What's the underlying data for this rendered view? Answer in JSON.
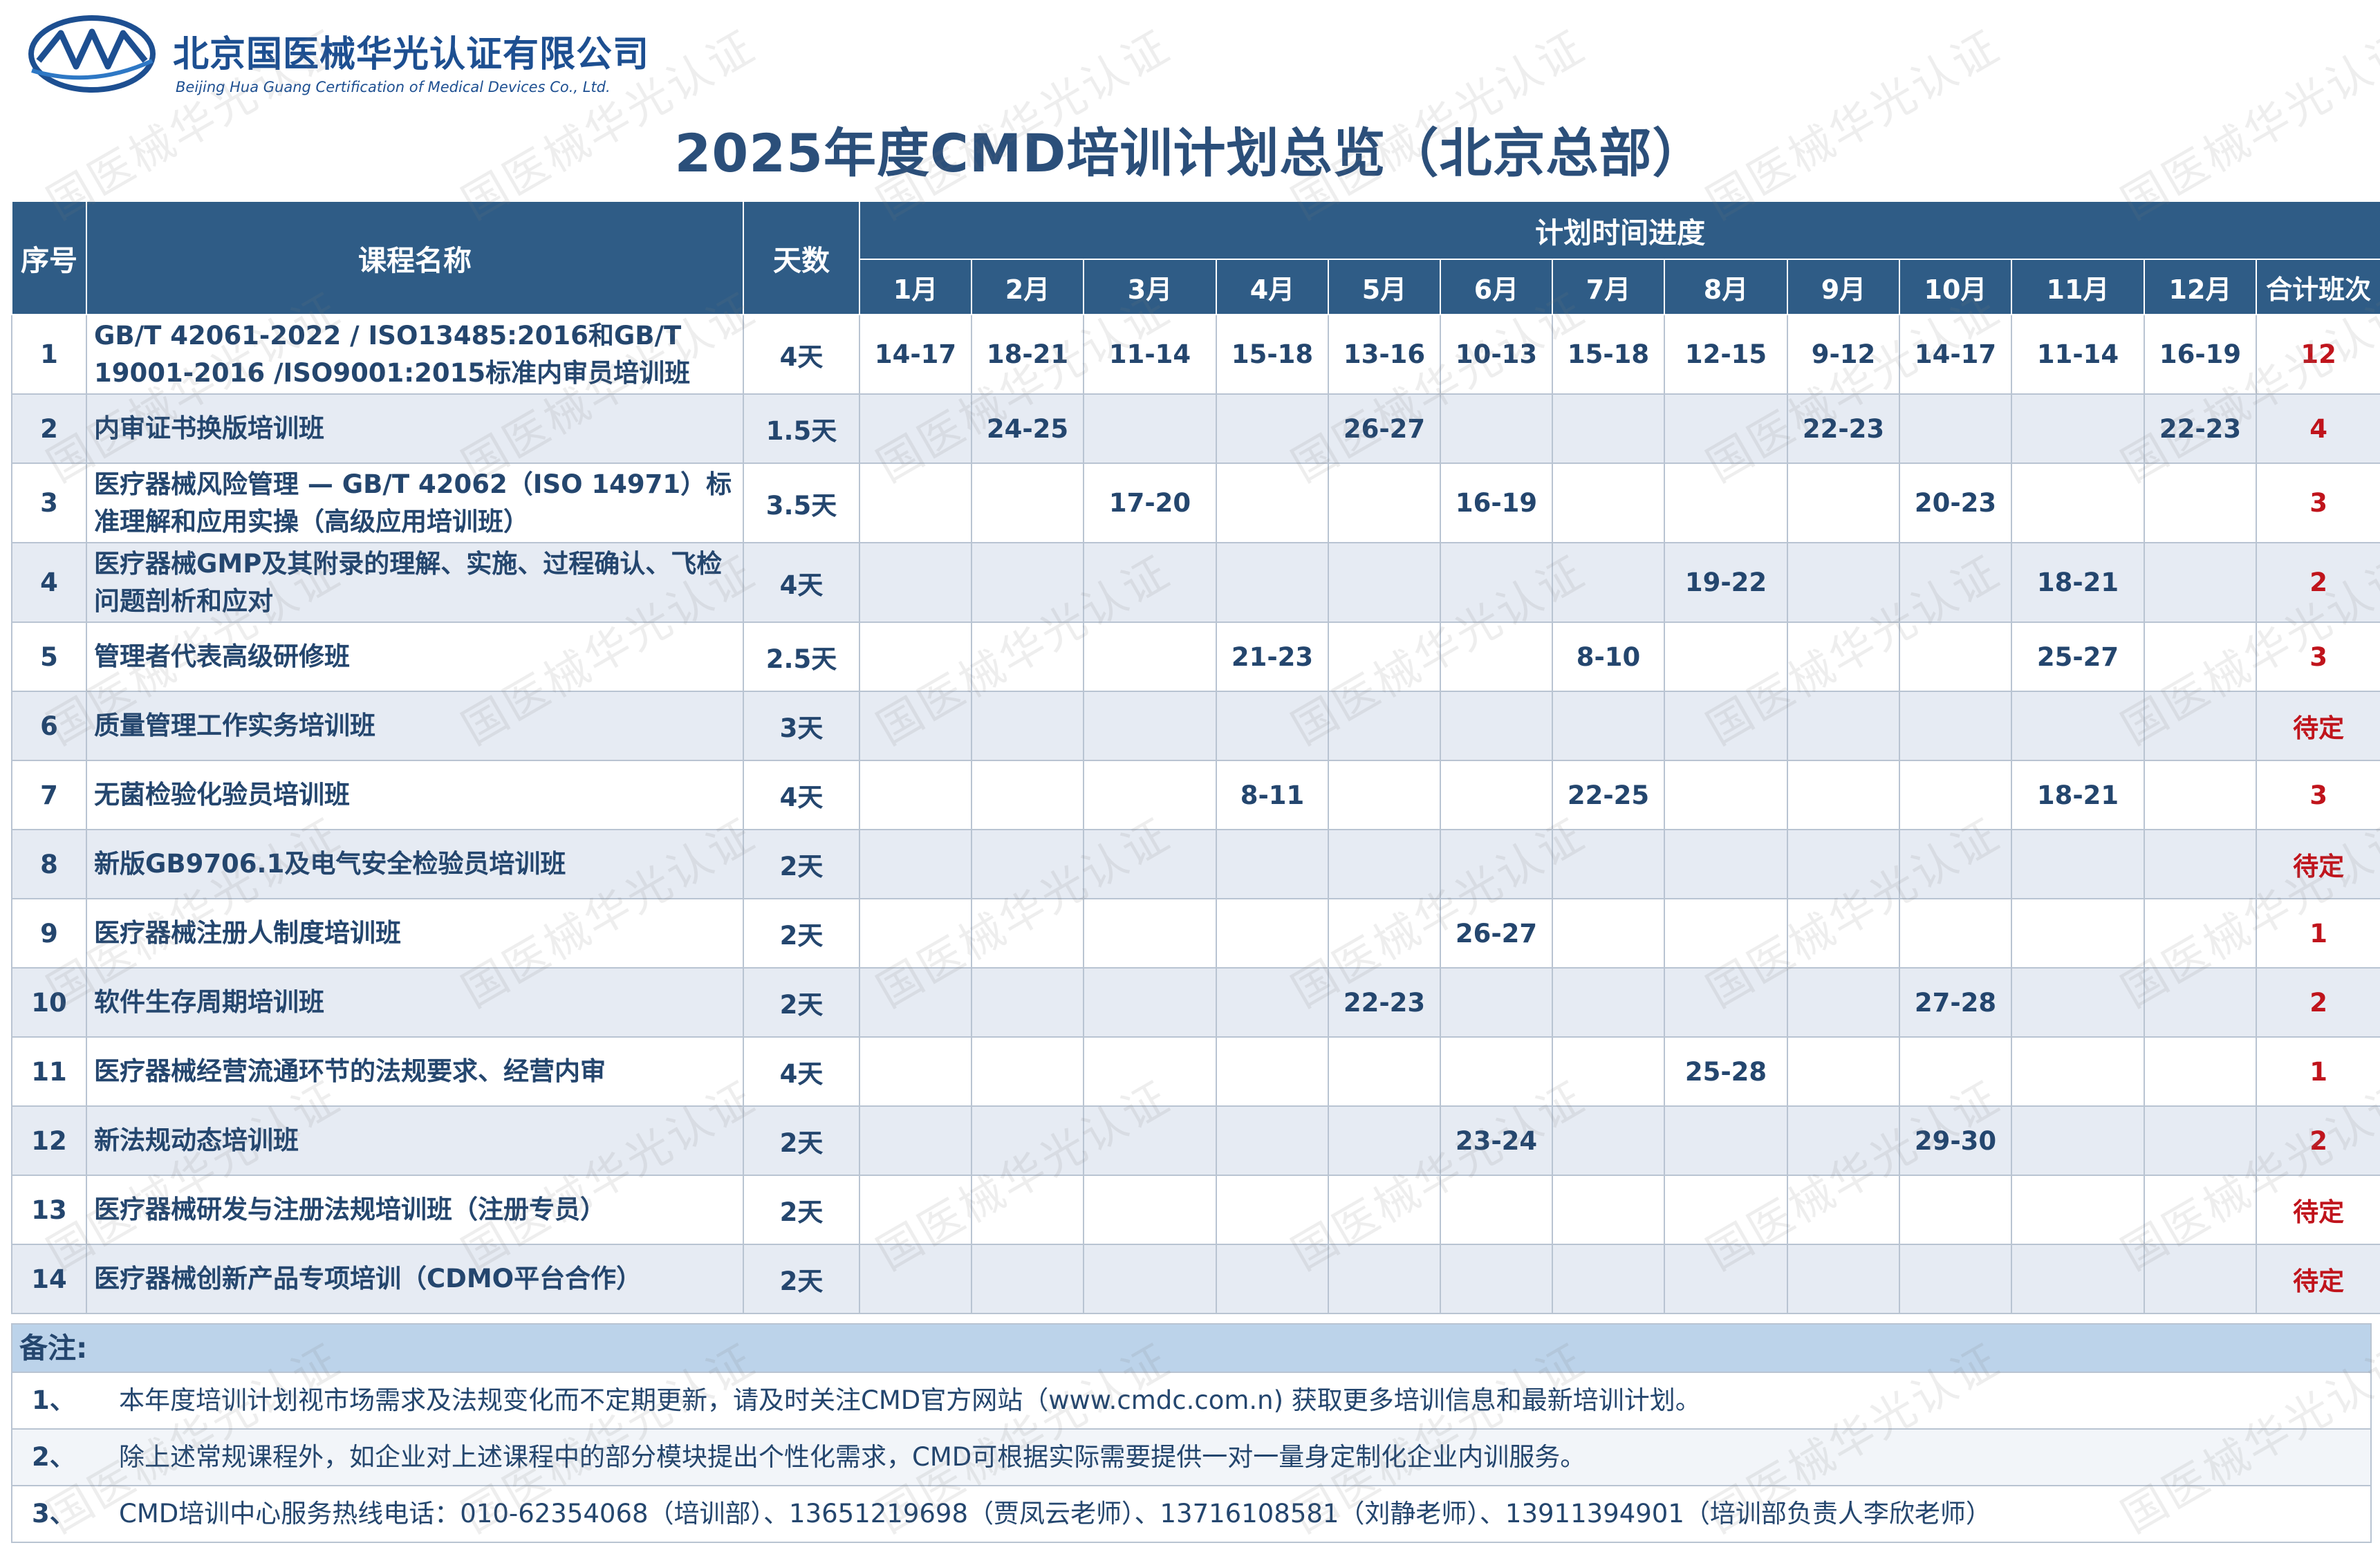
{
  "company": {
    "name_cn": "北京国医械华光认证有限公司",
    "name_en": "Beijing Hua Guang Certification of Medical Devices Co., Ltd."
  },
  "title": "2025年度CMD培训计划总览（北京总部）",
  "table": {
    "header_seq": "序号",
    "header_course": "课程名称",
    "header_days": "天数",
    "header_progress": "计划时间进度",
    "months": [
      "1月",
      "2月",
      "3月",
      "4月",
      "5月",
      "6月",
      "7月",
      "8月",
      "9月",
      "10月",
      "11月",
      "12月"
    ],
    "header_total": "合计班次",
    "rows": [
      {
        "seq": "1",
        "course": "GB/T 42061-2022 / ISO13485:2016和GB/T 19001-2016 /ISO9001:2015标准内审员培训班",
        "days": "4天",
        "months": [
          "14-17",
          "18-21",
          "11-14",
          "15-18",
          "13-16",
          "10-13",
          "15-18",
          "12-15",
          "9-12",
          "14-17",
          "11-14",
          "16-19"
        ],
        "total": "12"
      },
      {
        "seq": "2",
        "course": "内审证书换版培训班",
        "days": "1.5天",
        "months": [
          "",
          "24-25",
          "",
          "",
          "26-27",
          "",
          "",
          "",
          "22-23",
          "",
          "",
          "22-23"
        ],
        "total": "4"
      },
      {
        "seq": "3",
        "course": "医疗器械风险管理 — GB/T 42062（ISO 14971）标准理解和应用实操（高级应用培训班）",
        "days": "3.5天",
        "months": [
          "",
          "",
          "17-20",
          "",
          "",
          "16-19",
          "",
          "",
          "",
          "20-23",
          "",
          ""
        ],
        "total": "3"
      },
      {
        "seq": "4",
        "course": "医疗器械GMP及其附录的理解、实施、过程确认、飞检问题剖析和应对",
        "days": "4天",
        "months": [
          "",
          "",
          "",
          "",
          "",
          "",
          "",
          "19-22",
          "",
          "",
          "18-21",
          ""
        ],
        "total": "2"
      },
      {
        "seq": "5",
        "course": "管理者代表高级研修班",
        "days": "2.5天",
        "months": [
          "",
          "",
          "",
          "21-23",
          "",
          "",
          "8-10",
          "",
          "",
          "",
          "25-27",
          ""
        ],
        "total": "3"
      },
      {
        "seq": "6",
        "course": "质量管理工作实务培训班",
        "days": "3天",
        "months": [
          "",
          "",
          "",
          "",
          "",
          "",
          "",
          "",
          "",
          "",
          "",
          ""
        ],
        "total": "待定"
      },
      {
        "seq": "7",
        "course": "无菌检验化验员培训班",
        "days": "4天",
        "months": [
          "",
          "",
          "",
          "8-11",
          "",
          "",
          "22-25",
          "",
          "",
          "",
          "18-21",
          ""
        ],
        "total": "3"
      },
      {
        "seq": "8",
        "course": "新版GB9706.1及电气安全检验员培训班",
        "days": "2天",
        "months": [
          "",
          "",
          "",
          "",
          "",
          "",
          "",
          "",
          "",
          "",
          "",
          ""
        ],
        "total": "待定"
      },
      {
        "seq": "9",
        "course": "医疗器械注册人制度培训班",
        "days": "2天",
        "months": [
          "",
          "",
          "",
          "",
          "",
          "26-27",
          "",
          "",
          "",
          "",
          "",
          ""
        ],
        "total": "1"
      },
      {
        "seq": "10",
        "course": "软件生存周期培训班",
        "days": "2天",
        "months": [
          "",
          "",
          "",
          "",
          "22-23",
          "",
          "",
          "",
          "",
          "27-28",
          "",
          ""
        ],
        "total": "2"
      },
      {
        "seq": "11",
        "course": "医疗器械经营流通环节的法规要求、经营内审",
        "days": "4天",
        "months": [
          "",
          "",
          "",
          "",
          "",
          "",
          "",
          "25-28",
          "",
          "",
          "",
          ""
        ],
        "total": "1"
      },
      {
        "seq": "12",
        "course": "新法规动态培训班",
        "days": "2天",
        "months": [
          "",
          "",
          "",
          "",
          "",
          "23-24",
          "",
          "",
          "",
          "29-30",
          "",
          ""
        ],
        "total": "2"
      },
      {
        "seq": "13",
        "course": "医疗器械研发与注册法规培训班（注册专员）",
        "days": "2天",
        "months": [
          "",
          "",
          "",
          "",
          "",
          "",
          "",
          "",
          "",
          "",
          "",
          ""
        ],
        "total": "待定"
      },
      {
        "seq": "14",
        "course": "医疗器械创新产品专项培训（CDMO平台合作）",
        "days": "2天",
        "months": [
          "",
          "",
          "",
          "",
          "",
          "",
          "",
          "",
          "",
          "",
          "",
          ""
        ],
        "total": "待定"
      }
    ]
  },
  "notes": {
    "title": "备注:",
    "items": [
      {
        "num": "1、",
        "text": "本年度培训计划视市场需求及法规变化而不定期更新，请及时关注CMD官方网站（www.cmdc.com.n) 获取更多培训信息和最新培训计划。"
      },
      {
        "num": "2、",
        "text": "除上述常规课程外，如企业对上述课程中的部分模块提出个性化需求，CMD可根据实际需要提供一对一量身定制化企业内训服务。"
      },
      {
        "num": "3、",
        "text": "CMD培训中心服务热线电话：010-62354068（培训部）、13651219698（贾凤云老师）、13716108581（刘静老师）、13911394901（培训部负责人李欣老师）"
      }
    ]
  },
  "watermark_text": "国医械华光认证",
  "colors": {
    "header_bg": "#2f5c86",
    "title": "#2b4f7a",
    "accent_red": "#c0141c",
    "row_alt": "#e6ebf3",
    "notes_bg": "#bcd3ea"
  }
}
